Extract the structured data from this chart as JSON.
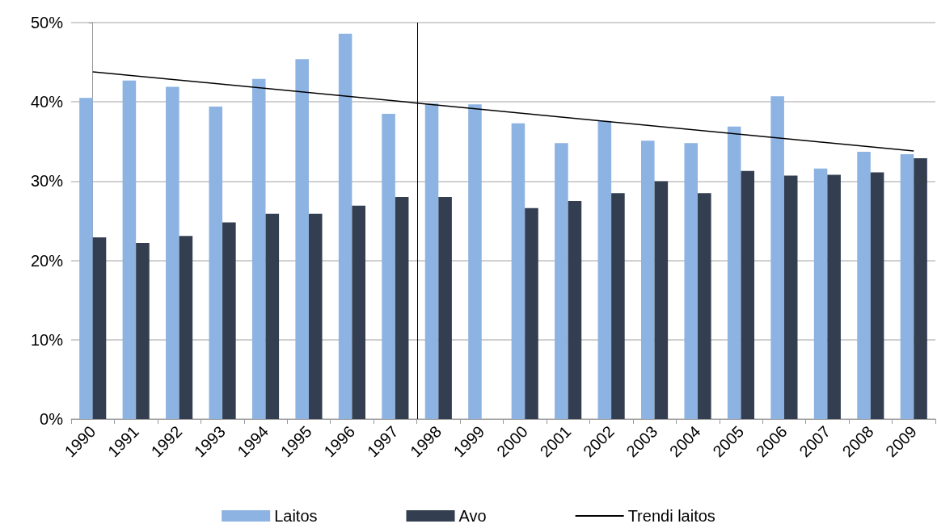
{
  "chart_data": {
    "type": "bar",
    "categories": [
      "1990",
      "1991",
      "1992",
      "1993",
      "1994",
      "1995",
      "1996",
      "1997",
      "1998",
      "1999",
      "2000",
      "2001",
      "2002",
      "2003",
      "2004",
      "2005",
      "2006",
      "2007",
      "2008",
      "2009"
    ],
    "series": [
      {
        "name": "Laitos",
        "color": "#8db3e2",
        "values": [
          40.5,
          42.7,
          41.9,
          39.4,
          42.9,
          45.4,
          48.6,
          38.5,
          39.8,
          39.7,
          37.3,
          34.8,
          37.6,
          35.1,
          34.8,
          36.9,
          40.7,
          31.6,
          33.7,
          33.4
        ]
      },
      {
        "name": "Avo",
        "color": "#333f50",
        "values": [
          22.9,
          22.2,
          23.1,
          24.8,
          25.9,
          25.9,
          26.9,
          28.0,
          28.0,
          null,
          26.6,
          27.5,
          28.5,
          30.0,
          28.5,
          31.3,
          30.7,
          30.8,
          31.1,
          32.9
        ]
      },
      {
        "name": "Trendi laitos",
        "type": "line",
        "color": "#000000",
        "values": [
          43.8,
          null,
          null,
          null,
          null,
          null,
          null,
          null,
          null,
          null,
          null,
          null,
          null,
          null,
          null,
          null,
          null,
          null,
          null,
          33.8
        ]
      }
    ],
    "ylim": [
      0,
      50
    ],
    "yticks": [
      {
        "value": 0,
        "label": "0%"
      },
      {
        "value": 10,
        "label": "10%"
      },
      {
        "value": 20,
        "label": "20%"
      },
      {
        "value": 30,
        "label": "30%"
      },
      {
        "value": 40,
        "label": "40%"
      },
      {
        "value": 50,
        "label": "50%"
      }
    ],
    "grid": "y",
    "legend": "bottom",
    "marker": "none",
    "ref_lines": [
      {
        "axis": "x",
        "value": "1998",
        "color": "#000000"
      }
    ]
  }
}
